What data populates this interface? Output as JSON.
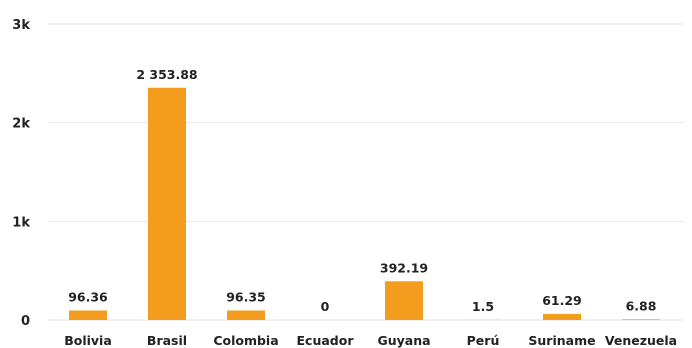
{
  "chart_data": {
    "type": "bar",
    "title": "",
    "xlabel": "",
    "ylabel": "",
    "categories": [
      "Bolivia",
      "Brasil",
      "Colombia",
      "Ecuador",
      "Guyana",
      "Perú",
      "Suriname",
      "Venezuela"
    ],
    "values": [
      96.36,
      2353.88,
      96.35,
      0,
      392.19,
      1.5,
      61.29,
      6.88
    ],
    "value_labels": [
      "96.36",
      "2 353.88",
      "96.35",
      "0",
      "392.19",
      "1.5",
      "61.29",
      "6.88"
    ],
    "ylim": [
      0,
      3000
    ],
    "y_ticks": [
      {
        "value": 0,
        "label": "0"
      },
      {
        "value": 1000,
        "label": "1k"
      },
      {
        "value": 2000,
        "label": "2k"
      },
      {
        "value": 3000,
        "label": "3k"
      }
    ],
    "grid": true,
    "legend": "none",
    "bar_color": "#F39C1E",
    "grid_color": "#E6E6E6",
    "text_color": "#222222"
  }
}
